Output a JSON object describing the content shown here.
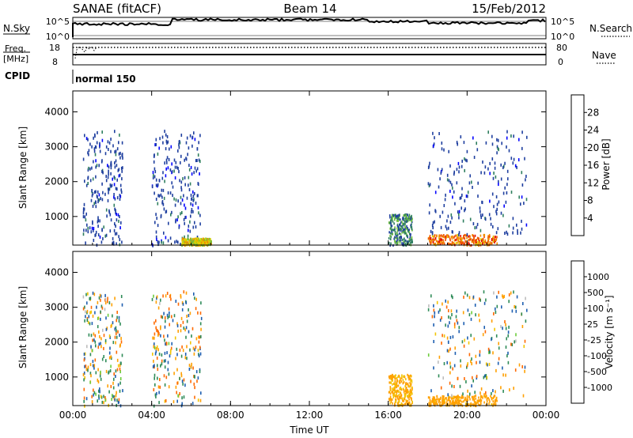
{
  "header": {
    "station": "SANAE (fitACF)",
    "beam": "Beam 14",
    "date": "15/Feb/2012"
  },
  "sky_panel": {
    "left_label": "N.Sky",
    "right_label": "N.Search",
    "tick_top": "10^5",
    "tick_bottom": "10^0"
  },
  "freq_panel": {
    "left_label_line1": "Freq.",
    "left_label_line2": "[MHz]",
    "right_label": "Nave",
    "left_tick_top": "18",
    "left_tick_bottom": "8",
    "right_tick_top": "80",
    "right_tick_bottom": "0"
  },
  "cpid": {
    "label": "CPID",
    "mode": "normal 150"
  },
  "colors": {
    "power_scale": [
      "#0000ff",
      "#1f3f9f",
      "#2f7f5f",
      "#6fbf3f",
      "#e0d000",
      "#f09000",
      "#f05000",
      "#e00000"
    ],
    "velocity_scale": [
      "#ee0000",
      "#ff6a00",
      "#ffa000",
      "#f2c400",
      "#bdbdbd",
      "#6ccc3c",
      "#2e8b57",
      "#1e5fb0",
      "#1010cc"
    ]
  },
  "chart_data": [
    {
      "type": "heatmap",
      "panel": "power",
      "xlabel": "",
      "ylabel": "Slant Range [km]",
      "x_ticks": [
        "00:00",
        "04:00",
        "08:00",
        "12:00",
        "16:00",
        "20:00",
        "00:00"
      ],
      "xlim_hours": [
        0,
        24
      ],
      "y_ticks": [
        1000,
        2000,
        3000,
        4000
      ],
      "ylim_km": [
        180,
        4600
      ],
      "colorbar": {
        "label": "Power [dB]",
        "tick_labels": [
          "4",
          "8",
          "12",
          "16",
          "20",
          "24",
          "28"
        ],
        "range": [
          0,
          32
        ]
      },
      "echo_regions_approx": [
        {
          "hour_start": 0.5,
          "hour_end": 2.5,
          "range_start": 200,
          "range_end": 3500,
          "dominant_value": 6
        },
        {
          "hour_start": 4.0,
          "hour_end": 6.5,
          "range_start": 200,
          "range_end": 3500,
          "dominant_value": 6
        },
        {
          "hour_start": 5.5,
          "hour_end": 7.0,
          "range_start": 200,
          "range_end": 400,
          "dominant_value": 18
        },
        {
          "hour_start": 16.0,
          "hour_end": 17.2,
          "range_start": 200,
          "range_end": 1100,
          "dominant_value": 10
        },
        {
          "hour_start": 18.0,
          "hour_end": 21.5,
          "range_start": 200,
          "range_end": 500,
          "dominant_value": 24
        },
        {
          "hour_start": 18.0,
          "hour_end": 23.0,
          "range_start": 500,
          "range_end": 3500,
          "dominant_value": 6
        }
      ]
    },
    {
      "type": "heatmap",
      "panel": "velocity",
      "xlabel": "Time UT",
      "ylabel": "Slant Range [km]",
      "x_ticks": [
        "00:00",
        "04:00",
        "08:00",
        "12:00",
        "16:00",
        "20:00",
        "00:00"
      ],
      "xlim_hours": [
        0,
        24
      ],
      "y_ticks": [
        1000,
        2000,
        3000,
        4000
      ],
      "ylim_km": [
        180,
        4600
      ],
      "colorbar": {
        "label": "Velocity [m s⁻¹]",
        "tick_labels": [
          "1000",
          "500",
          "100",
          "25",
          "-25",
          "-100",
          "-500",
          "-1000"
        ]
      },
      "echo_regions_approx": [
        {
          "hour_start": 0.5,
          "hour_end": 2.5,
          "range_start": 200,
          "range_end": 3500,
          "dominant_value": 0
        },
        {
          "hour_start": 4.0,
          "hour_end": 6.5,
          "range_start": 200,
          "range_end": 3500,
          "dominant_value": 0
        },
        {
          "hour_start": 16.0,
          "hour_end": 17.2,
          "range_start": 200,
          "range_end": 1100,
          "dominant_value": -150
        },
        {
          "hour_start": 18.0,
          "hour_end": 21.5,
          "range_start": 200,
          "range_end": 500,
          "dominant_value": -200
        },
        {
          "hour_start": 18.0,
          "hour_end": 23.0,
          "range_start": 500,
          "range_end": 3500,
          "dominant_value": 0
        }
      ]
    }
  ]
}
